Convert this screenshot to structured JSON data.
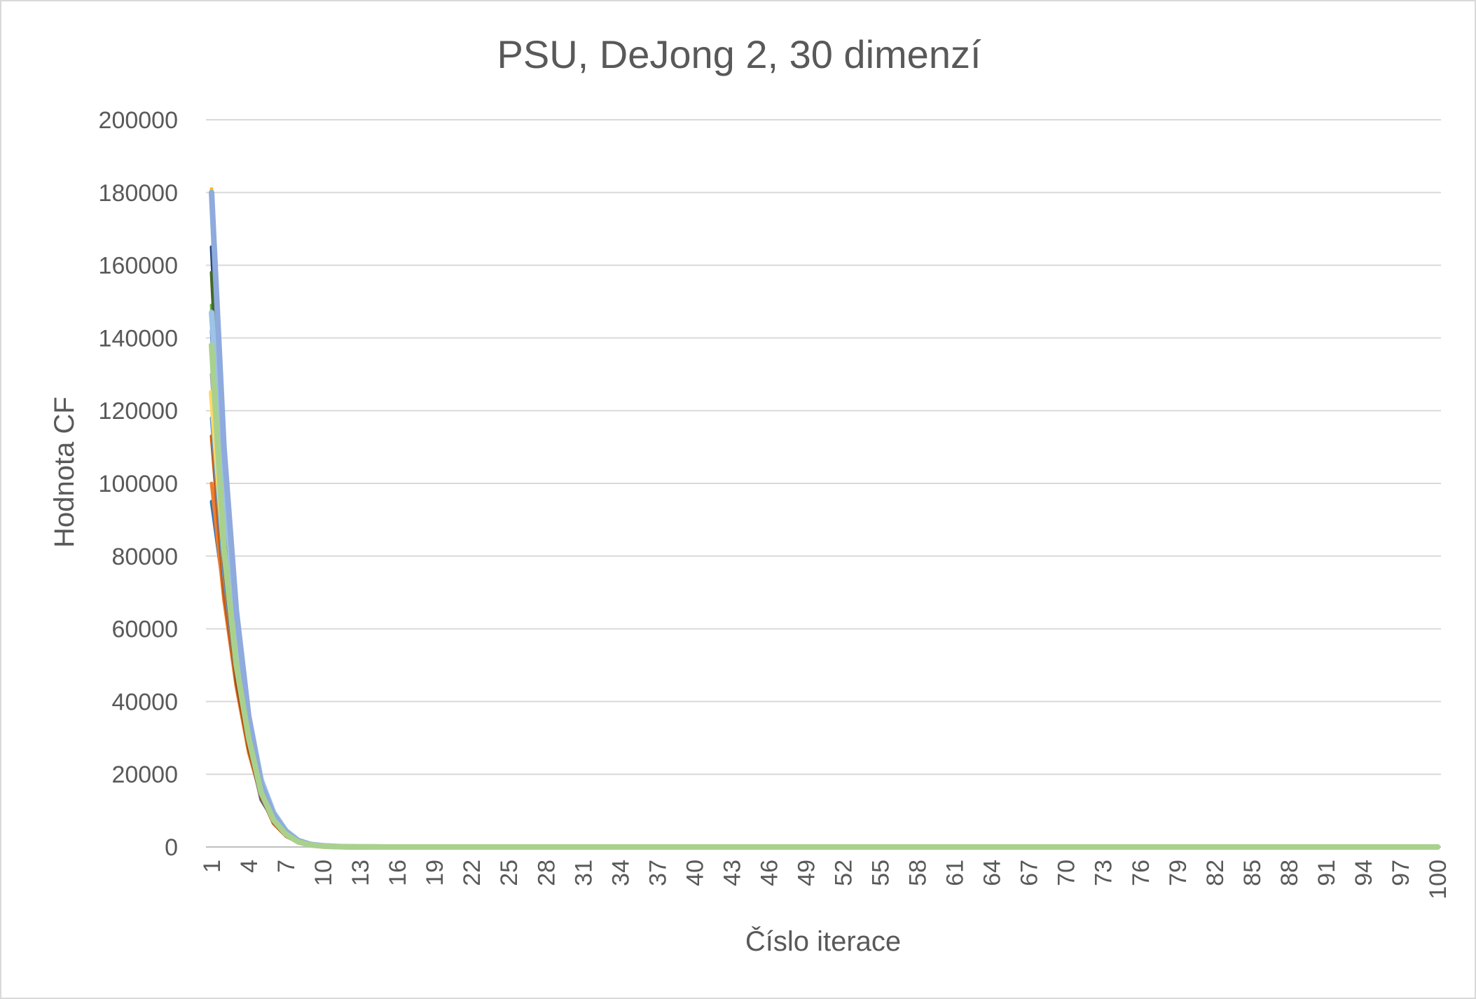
{
  "chart_data": {
    "type": "line",
    "title": "PSU, DeJong 2, 30 dimenzí",
    "xlabel": "Číslo iterace",
    "ylabel": "Hodnota CF",
    "ylim": [
      0,
      200000
    ],
    "y_ticks": [
      "0",
      "20000",
      "40000",
      "60000",
      "80000",
      "100000",
      "120000",
      "140000",
      "160000",
      "180000",
      "200000"
    ],
    "x_tick_labels": [
      "1",
      "4",
      "7",
      "10",
      "13",
      "16",
      "19",
      "22",
      "25",
      "28",
      "31",
      "34",
      "37",
      "40",
      "43",
      "46",
      "49",
      "52",
      "55",
      "58",
      "61",
      "64",
      "67",
      "70",
      "73",
      "76",
      "79",
      "82",
      "85",
      "88",
      "91",
      "94",
      "97",
      "100"
    ],
    "x_range": [
      1,
      100
    ],
    "grid": true,
    "legend": "none",
    "series": [
      {
        "color": "#2e75b6",
        "start": [
          95000,
          70000,
          45000,
          27000,
          14000,
          7000,
          3500,
          1500,
          600,
          250,
          100,
          50,
          20,
          10,
          5
        ]
      },
      {
        "color": "#ed7d31",
        "start": [
          100000,
          68000,
          44000,
          26000,
          14000,
          7000,
          3000,
          1200,
          500,
          200,
          80,
          40,
          15,
          8,
          4
        ]
      },
      {
        "color": "#a5a5a5",
        "start": [
          130000,
          80000,
          50000,
          30000,
          15000,
          8000,
          3500,
          1400,
          600,
          300,
          120,
          50,
          20,
          10,
          5
        ]
      },
      {
        "color": "#c55a11",
        "start": [
          113000,
          70000,
          45000,
          27000,
          14000,
          6500,
          3000,
          1300,
          500,
          200,
          80,
          30,
          12,
          6,
          3
        ]
      },
      {
        "color": "#70ad47",
        "start": [
          149000,
          85000,
          52000,
          31000,
          16000,
          8000,
          3800,
          1500,
          600,
          280,
          110,
          45,
          18,
          9,
          4
        ]
      },
      {
        "color": "#5b9bd5",
        "start": [
          118000,
          75000,
          46000,
          28000,
          14500,
          7200,
          3300,
          1400,
          550,
          240,
          100,
          40,
          16,
          8,
          4
        ]
      },
      {
        "color": "#264478",
        "start": [
          165000,
          95000,
          58000,
          34000,
          17000,
          8500,
          4000,
          1600,
          650,
          300,
          130,
          55,
          22,
          10,
          5
        ]
      },
      {
        "color": "#43682b",
        "start": [
          158000,
          90000,
          55000,
          32000,
          16500,
          8000,
          3900,
          1550,
          620,
          290,
          120,
          50,
          20,
          10,
          5
        ]
      },
      {
        "color": "#ffc000",
        "start": [
          181000,
          100000,
          60000,
          35000,
          18000,
          9000,
          4200,
          1700,
          700,
          320,
          140,
          60,
          25,
          12,
          6
        ]
      },
      {
        "color": "#4472c4",
        "start": [
          142000,
          80000,
          47000,
          28000,
          13000,
          7500,
          3400,
          1400,
          560,
          250,
          110,
          45,
          18,
          9,
          4
        ]
      },
      {
        "color": "#9e480e",
        "start": [
          137000,
          78000,
          46000,
          27500,
          13500,
          7200,
          3300,
          1350,
          540,
          240,
          100,
          42,
          17,
          8,
          4
        ]
      },
      {
        "color": "#ffd966",
        "start": [
          125000,
          82000,
          50000,
          30000,
          15500,
          7800,
          3600,
          1450,
          580,
          260,
          110,
          46,
          19,
          9,
          4
        ]
      },
      {
        "color": "#9dc3e6",
        "start": [
          147000,
          100000,
          62000,
          36000,
          18500,
          9500,
          4500,
          1800,
          720,
          330,
          140,
          60,
          24,
          11,
          5
        ]
      },
      {
        "color": "#8faadc",
        "start": [
          180000,
          110000,
          65000,
          36000,
          17500,
          9000,
          4200,
          1700,
          680,
          310,
          135,
          56,
          22,
          11,
          5
        ]
      },
      {
        "color": "#a9d18e",
        "start": [
          138000,
          82000,
          50000,
          30000,
          15000,
          7500,
          3500,
          1400,
          560,
          250,
          100,
          40,
          16,
          8,
          4
        ]
      }
    ]
  }
}
